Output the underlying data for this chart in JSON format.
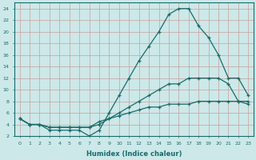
{
  "title": "",
  "xlabel": "Humidex (Indice chaleur)",
  "bg_color": "#cde8e8",
  "line_color": "#1a6b6b",
  "grid_color": "#b0d0d0",
  "xlim": [
    -0.5,
    23.5
  ],
  "ylim": [
    2,
    25
  ],
  "xticks": [
    0,
    1,
    2,
    3,
    4,
    5,
    6,
    7,
    8,
    9,
    10,
    11,
    12,
    13,
    14,
    15,
    16,
    17,
    18,
    19,
    20,
    21,
    22,
    23
  ],
  "yticks": [
    2,
    4,
    6,
    8,
    10,
    12,
    14,
    16,
    18,
    20,
    22,
    24
  ],
  "curve1_x": [
    0,
    1,
    2,
    3,
    4,
    5,
    6,
    7,
    8,
    9,
    10,
    11,
    12,
    13,
    14,
    15,
    16,
    17,
    18,
    19,
    20,
    21,
    22,
    23
  ],
  "curve1_y": [
    5,
    4,
    4,
    3,
    3,
    3,
    3,
    2,
    3,
    6,
    9,
    12,
    15,
    17.5,
    20,
    23,
    24,
    24,
    21,
    19,
    16,
    12,
    12,
    9
  ],
  "curve2_x": [
    0,
    1,
    2,
    3,
    4,
    5,
    6,
    7,
    8,
    9,
    10,
    11,
    12,
    13,
    14,
    15,
    16,
    17,
    18,
    19,
    20,
    21,
    22,
    23
  ],
  "curve2_y": [
    5,
    4,
    4,
    3.5,
    3.5,
    3.5,
    3.5,
    3.5,
    4,
    5,
    6,
    7,
    8,
    9,
    10,
    11,
    11,
    12,
    12,
    12,
    12,
    11,
    8,
    7.5
  ],
  "curve3_x": [
    0,
    1,
    2,
    3,
    4,
    5,
    6,
    7,
    8,
    9,
    10,
    11,
    12,
    13,
    14,
    15,
    16,
    17,
    18,
    19,
    20,
    21,
    22,
    23
  ],
  "curve3_y": [
    5,
    4,
    4,
    3.5,
    3.5,
    3.5,
    3.5,
    3.5,
    4.5,
    5,
    5.5,
    6,
    6.5,
    7,
    7,
    7.5,
    7.5,
    7.5,
    8,
    8,
    8,
    8,
    8,
    8
  ]
}
